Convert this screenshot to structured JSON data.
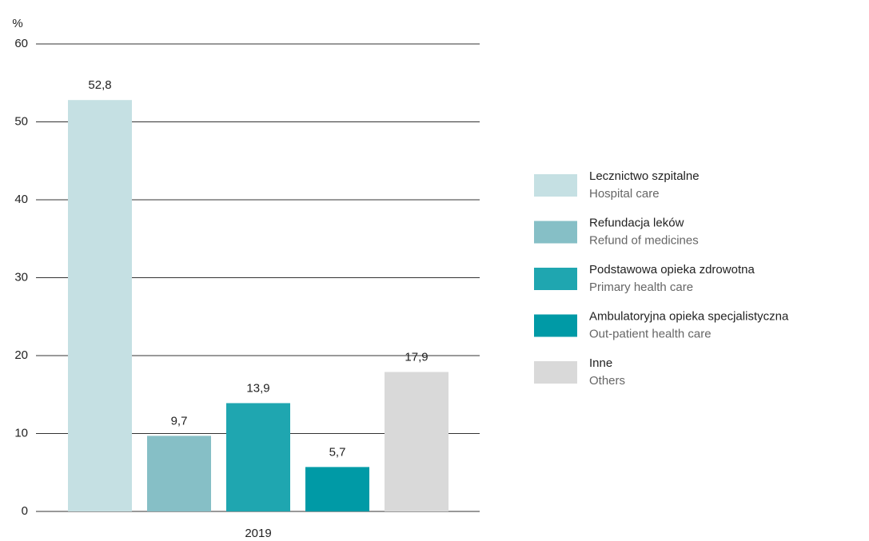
{
  "chart_data": {
    "type": "bar",
    "ylabel": "%",
    "categories": [
      "2019"
    ],
    "series": [
      {
        "name": "Lecznictwo szpitalne",
        "name_en": "Hospital care",
        "color": "#c5e0e3",
        "values": [
          52.8
        ],
        "value_labels": [
          "52,8"
        ]
      },
      {
        "name": "Refundacja leków",
        "name_en": "Refund of medicines",
        "color": "#86bfc6",
        "values": [
          9.7
        ],
        "value_labels": [
          "9,7"
        ]
      },
      {
        "name": "Podstawowa opieka zdrowotna",
        "name_en": "Primary health care",
        "color": "#1fa6b0",
        "values": [
          13.9
        ],
        "value_labels": [
          "13,9"
        ]
      },
      {
        "name": "Ambulatoryjna opieka specjalistyczna",
        "name_en": "Out-patient health care",
        "color": "#009aa6",
        "values": [
          5.7
        ],
        "value_labels": [
          "5,7"
        ]
      },
      {
        "name": "Inne",
        "name_en": "Others",
        "color": "#d9d9d9",
        "values": [
          17.9
        ],
        "value_labels": [
          "17,9"
        ]
      }
    ],
    "ylim": [
      0,
      60
    ],
    "yticks": [
      0,
      10,
      20,
      30,
      40,
      50,
      60
    ],
    "grid": true,
    "legend": "right"
  }
}
